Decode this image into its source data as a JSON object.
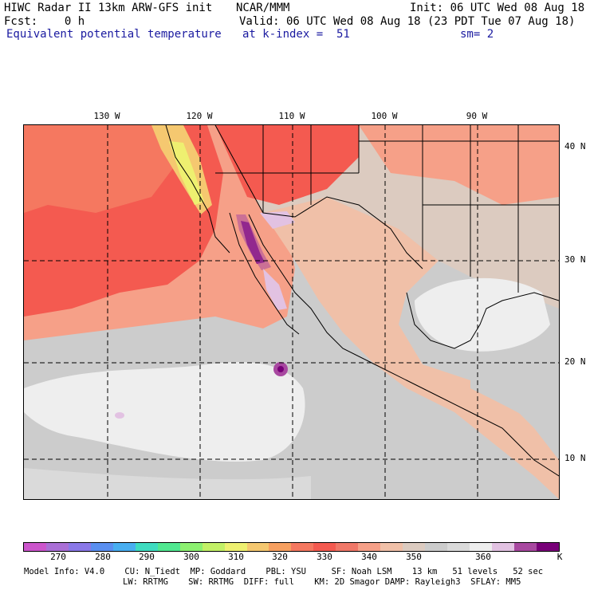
{
  "header": {
    "line1_left": "HIWC Radar II 13km ARW-GFS init",
    "line1_center": "NCAR/MMM",
    "line1_right": "Init: 06 UTC Wed 08 Aug 18",
    "line2_left": "Fcst:    0 h",
    "line2_right": "Valid: 06 UTC Wed 08 Aug 18 (23 PDT Tue 07 Aug 18)",
    "line3_field": "Equivalent potential temperature",
    "line3_level": "at k-index =  51",
    "line3_smooth": "sm= 2"
  },
  "map": {
    "lon_labels": [
      "130 W",
      "120 W",
      "110 W",
      "100 W",
      "90 W"
    ],
    "lat_labels": [
      "40 N",
      "30 N",
      "20 N",
      "10 N"
    ]
  },
  "colorbar": {
    "colors": [
      "#cc55cc",
      "#aa6fd6",
      "#8a78e8",
      "#5a8ff0",
      "#48aef0",
      "#3edcc0",
      "#50e890",
      "#8cf070",
      "#c2f066",
      "#eef070",
      "#f5c870",
      "#f7a060",
      "#f57860",
      "#f45a50",
      "#f07868",
      "#f6a088",
      "#f0c0a8",
      "#dccbc0",
      "#cccccc",
      "#dadada",
      "#eeeeee",
      "#e2c2e2",
      "#a848a0",
      "#780078"
    ],
    "ticks": [
      "270",
      "280",
      "290",
      "300",
      "310",
      "320",
      "330",
      "340",
      "350",
      "360",
      "K"
    ]
  },
  "footer": {
    "line1": "Model Info: V4.0    CU: N_Tiedt  MP: Goddard    PBL: YSU     SF: Noah LSM    13 km   51 levels   52 sec",
    "line2": "LW: RRTMG    SW: RRTMG  DIFF: full    KM: 2D Smagor DAMP: Rayleigh3  SFLAY: MM5"
  }
}
